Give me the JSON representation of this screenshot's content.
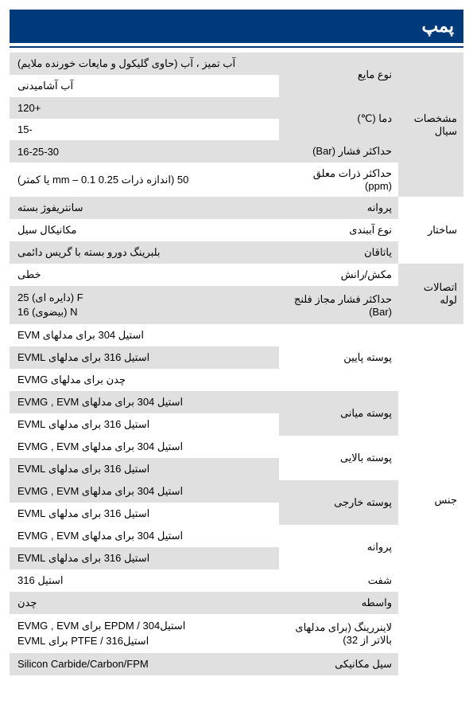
{
  "title": "پمپ",
  "colors": {
    "header_bg": "#003a7a",
    "header_text": "#ffffff",
    "shade": "#e0e0e0",
    "white": "#ffffff"
  },
  "sections": [
    {
      "name": "مشخصات سیال",
      "shaded": true,
      "rows": [
        {
          "label": "نوع مایع",
          "shaded": true,
          "values": [
            {
              "text": "آب تمیز ، آب (حاوی گلیکول و مایعات خورنده ملایم)",
              "shaded": true
            },
            {
              "text": "آب آشامیدنی",
              "shaded": false
            }
          ]
        },
        {
          "label": "دما (℃)",
          "shaded": true,
          "values": [
            {
              "text": "+120",
              "shaded": true
            },
            {
              "text": "-15",
              "shaded": false
            }
          ]
        },
        {
          "label": "حداکثر فشار (Bar)",
          "shaded": true,
          "values": [
            {
              "text": "16-25-30",
              "shaded": true
            }
          ]
        },
        {
          "label": "حداکثر ذرات معلق (ppm)",
          "shaded": false,
          "values": [
            {
              "text": "50 (اندازه ذرات 0.25 mm – 0.1 یا کمتر)",
              "shaded": false
            }
          ]
        }
      ]
    },
    {
      "name": "ساختار",
      "shaded": false,
      "rows": [
        {
          "label": "پروانه",
          "shaded": true,
          "values": [
            {
              "text": "سانتریفوژ بسته",
              "shaded": true
            }
          ]
        },
        {
          "label": "نوع آببندی",
          "shaded": false,
          "values": [
            {
              "text": "مکانیکال سیل",
              "shaded": false
            }
          ]
        },
        {
          "label": "یاتاقان",
          "shaded": true,
          "values": [
            {
              "text": "بلبرینگ دورو بسته با گریس دائمی",
              "shaded": true
            }
          ]
        }
      ]
    },
    {
      "name": "اتصالات لوله",
      "shaded": true,
      "rows": [
        {
          "label": "مکش/رانش",
          "shaded": false,
          "values": [
            {
              "text": "خطی",
              "shaded": false
            }
          ]
        },
        {
          "label": "حداکثر فشار مجاز فلنج (Bar)",
          "shaded": true,
          "values": [
            {
              "text": "F (دایره ای) 25\nN (بیضوی) 16",
              "shaded": true,
              "multiline": true
            }
          ]
        }
      ]
    },
    {
      "name": "جنس",
      "shaded": false,
      "rows": [
        {
          "label": "پوسته پایین",
          "shaded": false,
          "values": [
            {
              "text": "استیل 304 برای مدلهای EVM",
              "shaded": false
            },
            {
              "text": "استیل 316 برای مدلهای EVML",
              "shaded": true
            },
            {
              "text": "چدن برای مدلهای EVMG",
              "shaded": false
            }
          ]
        },
        {
          "label": "پوسته میانی",
          "shaded": true,
          "values": [
            {
              "text": "استیل 304 برای مدلهای EVMG , EVM",
              "shaded": true
            },
            {
              "text": "استیل 316 برای مدلهای EVML",
              "shaded": false
            }
          ]
        },
        {
          "label": "پوسته بالایی",
          "shaded": false,
          "values": [
            {
              "text": "استیل 304 برای مدلهای EVMG , EVM",
              "shaded": false
            },
            {
              "text": "استیل 316 برای مدلهای EVML",
              "shaded": true
            }
          ]
        },
        {
          "label": "پوسته خارجی",
          "shaded": true,
          "values": [
            {
              "text": "استیل 304 برای مدلهای EVMG , EVM",
              "shaded": true
            },
            {
              "text": "استیل 316 برای مدلهای EVML",
              "shaded": false
            }
          ]
        },
        {
          "label": "پروانه",
          "shaded": false,
          "values": [
            {
              "text": "استیل 304 برای مدلهای EVMG , EVM",
              "shaded": false
            },
            {
              "text": "استیل 316 برای مدلهای EVML",
              "shaded": true
            }
          ]
        },
        {
          "label": "شفت",
          "shaded": false,
          "values": [
            {
              "text": "استیل 316",
              "shaded": false
            }
          ]
        },
        {
          "label": "واسطه",
          "shaded": true,
          "values": [
            {
              "text": "چدن",
              "shaded": true
            }
          ]
        },
        {
          "label": "لاینررینگ (برای مدلهای بالاتر از 32)",
          "shaded": false,
          "values": [
            {
              "text": "استیل304 / EPDM   برای  EVMG , EVM\nاستیل316 / PTFE   برای  EVML",
              "shaded": false,
              "multiline": true
            }
          ]
        },
        {
          "label": "سیل مکانیکی",
          "shaded": true,
          "values": [
            {
              "text": "Silicon Carbide/Carbon/FPM",
              "shaded": true
            }
          ]
        }
      ]
    }
  ]
}
